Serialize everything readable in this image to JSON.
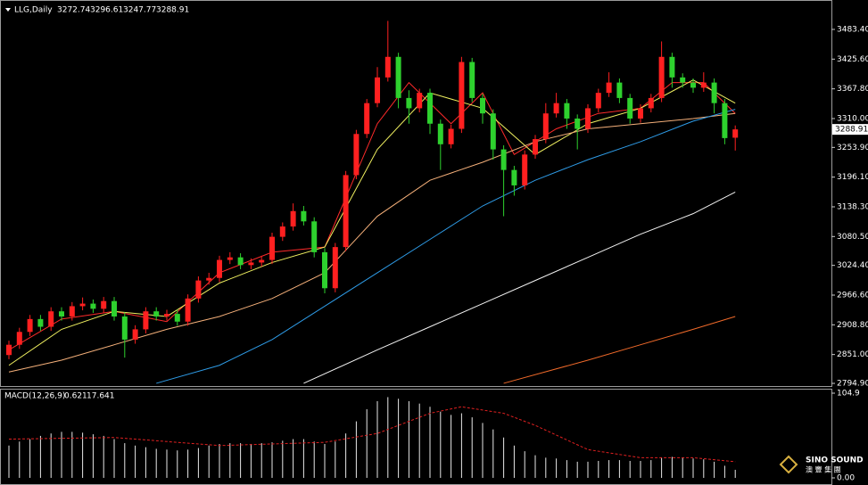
{
  "chart_data": [
    {
      "type": "candlestick",
      "title": "LLG,Daily",
      "up_color": "#ff2020",
      "down_color": "#2ed12e",
      "ylim": [
        2789.7,
        3535.4
      ],
      "yticks": [
        {
          "value": 3483.4,
          "label": "3483.40"
        },
        {
          "value": 3425.6,
          "label": "3425.60"
        },
        {
          "value": 3367.8,
          "label": "3367.80"
        },
        {
          "value": 3310,
          "label": "3310.00"
        },
        {
          "value": 3253.9,
          "label": "3253.90"
        },
        {
          "value": 3196.1,
          "label": "3196.10"
        },
        {
          "value": 3138.3,
          "label": "3138.30"
        },
        {
          "value": 3080.5,
          "label": "3080.50"
        },
        {
          "value": 3024.4,
          "label": "3024.40"
        },
        {
          "value": 2966.6,
          "label": "2966.60"
        },
        {
          "value": 2908.8,
          "label": "2908.80"
        },
        {
          "value": 2851,
          "label": "2851.00"
        },
        {
          "value": 2794.9,
          "label": "2794.90"
        }
      ],
      "candles": [
        [
          2850,
          2878,
          2842,
          2870
        ],
        [
          2870,
          2903,
          2862,
          2895
        ],
        [
          2895,
          2928,
          2887,
          2920
        ],
        [
          2920,
          2928,
          2897,
          2905
        ],
        [
          2905,
          2943,
          2897,
          2935
        ],
        [
          2935,
          2943,
          2917,
          2925
        ],
        [
          2925,
          2953,
          2917,
          2945
        ],
        [
          2945,
          2962,
          2937,
          2950
        ],
        [
          2950,
          2958,
          2932,
          2940
        ],
        [
          2940,
          2963,
          2932,
          2955
        ],
        [
          2955,
          2963,
          2917,
          2925
        ],
        [
          2925,
          2933,
          2845,
          2880
        ],
        [
          2880,
          2908,
          2872,
          2900
        ],
        [
          2900,
          2943,
          2892,
          2935
        ],
        [
          2935,
          2943,
          2917,
          2925
        ],
        [
          2925,
          2938,
          2917,
          2930
        ],
        [
          2930,
          2938,
          2907,
          2915
        ],
        [
          2915,
          2968,
          2907,
          2960
        ],
        [
          2960,
          3003,
          2952,
          2995
        ],
        [
          2995,
          3010,
          2987,
          3000
        ],
        [
          3000,
          3043,
          2992,
          3035
        ],
        [
          3035,
          3050,
          3027,
          3040
        ],
        [
          3040,
          3048,
          3017,
          3025
        ],
        [
          3025,
          3038,
          3017,
          3030
        ],
        [
          3030,
          3043,
          3022,
          3035
        ],
        [
          3035,
          3088,
          3027,
          3080
        ],
        [
          3080,
          3108,
          3072,
          3100
        ],
        [
          3100,
          3145,
          3092,
          3130
        ],
        [
          3130,
          3140,
          3102,
          3110
        ],
        [
          3110,
          3118,
          3040,
          3050
        ],
        [
          3050,
          3058,
          2970,
          2980
        ],
        [
          2980,
          3068,
          2972,
          3060
        ],
        [
          3060,
          3208,
          3052,
          3200
        ],
        [
          3200,
          3288,
          3192,
          3280
        ],
        [
          3280,
          3348,
          3272,
          3340
        ],
        [
          3340,
          3410,
          3332,
          3390
        ],
        [
          3390,
          3500,
          3382,
          3430
        ],
        [
          3430,
          3438,
          3330,
          3350
        ],
        [
          3350,
          3365,
          3300,
          3330
        ],
        [
          3330,
          3368,
          3322,
          3360
        ],
        [
          3360,
          3368,
          3280,
          3300
        ],
        [
          3300,
          3308,
          3210,
          3260
        ],
        [
          3260,
          3298,
          3252,
          3290
        ],
        [
          3290,
          3430,
          3282,
          3420
        ],
        [
          3420,
          3428,
          3342,
          3350
        ],
        [
          3350,
          3358,
          3300,
          3320
        ],
        [
          3320,
          3328,
          3230,
          3250
        ],
        [
          3250,
          3258,
          3120,
          3210
        ],
        [
          3210,
          3218,
          3160,
          3180
        ],
        [
          3180,
          3248,
          3172,
          3240
        ],
        [
          3240,
          3278,
          3232,
          3270
        ],
        [
          3270,
          3340,
          3262,
          3320
        ],
        [
          3320,
          3360,
          3312,
          3340
        ],
        [
          3340,
          3348,
          3290,
          3310
        ],
        [
          3310,
          3318,
          3250,
          3290
        ],
        [
          3290,
          3338,
          3282,
          3330
        ],
        [
          3330,
          3368,
          3322,
          3360
        ],
        [
          3360,
          3400,
          3352,
          3380
        ],
        [
          3380,
          3388,
          3340,
          3350
        ],
        [
          3350,
          3358,
          3300,
          3310
        ],
        [
          3310,
          3338,
          3302,
          3330
        ],
        [
          3330,
          3358,
          3322,
          3350
        ],
        [
          3350,
          3460,
          3342,
          3430
        ],
        [
          3430,
          3438,
          3370,
          3390
        ],
        [
          3390,
          3398,
          3370,
          3380
        ],
        [
          3380,
          3388,
          3360,
          3370
        ],
        [
          3370,
          3400,
          3362,
          3380
        ],
        [
          3380,
          3388,
          3320,
          3340
        ],
        [
          3340,
          3348,
          3260,
          3272
        ],
        [
          3272.74,
          3296.61,
          3247.77,
          3288.91
        ]
      ],
      "lines": [
        {
          "color": "#ff2a2a",
          "x": [
            0,
            5,
            10,
            15,
            20,
            25,
            30,
            35,
            38,
            42,
            45,
            48,
            52,
            56,
            60,
            63,
            66,
            69
          ],
          "values": [
            2860,
            2920,
            2935,
            2915,
            3010,
            3050,
            3060,
            3300,
            3380,
            3300,
            3360,
            3240,
            3290,
            3320,
            3330,
            3380,
            3380,
            3320
          ]
        },
        {
          "color": "#f0f060",
          "x": [
            0,
            5,
            10,
            15,
            20,
            25,
            30,
            35,
            40,
            45,
            50,
            55,
            60,
            65,
            69
          ],
          "values": [
            2830,
            2900,
            2935,
            2925,
            2990,
            3030,
            3060,
            3250,
            3360,
            3330,
            3240,
            3300,
            3330,
            3385,
            3340
          ]
        },
        {
          "color": "#f5b07a",
          "x": [
            0,
            5,
            10,
            15,
            20,
            25,
            30,
            35,
            40,
            45,
            50,
            55,
            60,
            65,
            69
          ],
          "values": [
            2817,
            2840,
            2870,
            2900,
            2925,
            2960,
            3010,
            3120,
            3190,
            3225,
            3265,
            3290,
            3300,
            3310,
            3320
          ]
        },
        {
          "color": "#2e9be6",
          "x": [
            14,
            20,
            25,
            30,
            35,
            40,
            45,
            50,
            55,
            60,
            65,
            69
          ],
          "values": [
            2795,
            2830,
            2880,
            2945,
            3010,
            3075,
            3140,
            3190,
            3230,
            3265,
            3305,
            3328
          ]
        },
        {
          "color": "#f2f2f2",
          "x": [
            28,
            35,
            40,
            45,
            50,
            55,
            60,
            65,
            69
          ],
          "values": [
            2795,
            2860,
            2905,
            2950,
            2995,
            3040,
            3085,
            3125,
            3167
          ]
        },
        {
          "color": "#f06a2a",
          "x": [
            47,
            55,
            60,
            65,
            69
          ],
          "values": [
            2795,
            2840,
            2870,
            2900,
            2925
          ]
        }
      ]
    },
    {
      "type": "bar",
      "title": "MACD(12,26,9)",
      "readout": [
        0.621,
        17.641
      ],
      "color": "#e8e8e8",
      "signal_color": "#e02020",
      "ylim": [
        0,
        104.9
      ],
      "yticks": [
        104.9,
        {
          "value": 0,
          "label": "0.00"
        }
      ],
      "values": [
        40,
        45,
        48,
        52,
        55,
        57,
        57,
        56,
        54,
        52,
        48,
        43,
        40,
        38,
        36,
        35,
        34,
        35,
        37,
        40,
        42,
        43,
        43,
        42,
        43,
        44,
        46,
        48,
        48,
        45,
        42,
        45,
        55,
        70,
        85,
        95,
        100,
        98,
        95,
        92,
        88,
        82,
        78,
        80,
        75,
        68,
        60,
        50,
        40,
        33,
        28,
        25,
        24,
        22,
        20,
        20,
        21,
        22,
        22,
        21,
        21,
        22,
        25,
        26,
        25,
        24,
        23,
        20,
        15,
        10
      ],
      "signal": {
        "x": [
          0,
          10,
          20,
          30,
          35,
          40,
          43,
          47,
          50,
          55,
          60,
          65,
          69
        ],
        "values": [
          48,
          50,
          40,
          44,
          55,
          80,
          88,
          80,
          65,
          35,
          25,
          25,
          20
        ]
      }
    },
    {
      "watermark": [
        "SINO SOUND",
        "澳 豐 集 團"
      ]
    }
  ]
}
